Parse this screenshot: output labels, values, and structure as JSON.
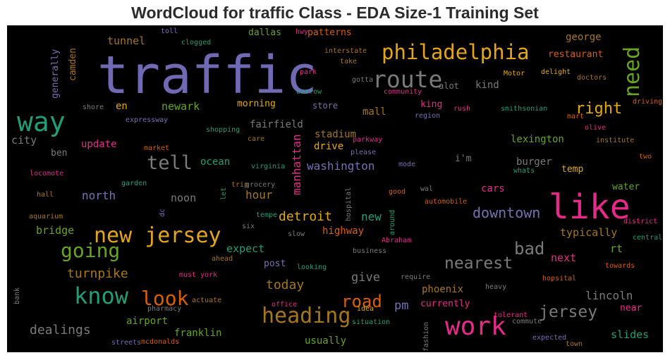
{
  "chart_data": {
    "type": "wordcloud",
    "title": "WordCloud for traffic Class - EDA Size-1 Training Set",
    "background": "#000000",
    "words": [
      {
        "text": "traffic",
        "color": "#6f6ab3"
      },
      {
        "text": "philadelphia",
        "color": "#e6a519"
      },
      {
        "text": "route",
        "color": "#7a7a7a"
      },
      {
        "text": "way",
        "color": "#1f9e77"
      },
      {
        "text": "like",
        "color": "#e7298a"
      },
      {
        "text": "work",
        "color": "#e7298a"
      },
      {
        "text": "new jersey",
        "color": "#e6a519"
      },
      {
        "text": "know",
        "color": "#1f9e77"
      },
      {
        "text": "heading",
        "color": "#a6761d"
      },
      {
        "text": "tell",
        "color": "#7a7a7a"
      },
      {
        "text": "going",
        "color": "#66a61e"
      },
      {
        "text": "look",
        "color": "#d95f02"
      },
      {
        "text": "need",
        "color": "#66a61e"
      },
      {
        "text": "right",
        "color": "#e6ab02"
      },
      {
        "text": "bad",
        "color": "#7a7a7a"
      },
      {
        "text": "nearest",
        "color": "#7a7a7a"
      },
      {
        "text": "jersey",
        "color": "#7a7a7a"
      },
      {
        "text": "road",
        "color": "#d95f02"
      },
      {
        "text": "downtown",
        "color": "#7570b3"
      },
      {
        "text": "washington",
        "color": "#7570b3"
      },
      {
        "text": "manhattan",
        "color": "#e7298a"
      },
      {
        "text": "detroit",
        "color": "#e6ab02"
      },
      {
        "text": "dealings",
        "color": "#7a7a7a"
      },
      {
        "text": "turnpike",
        "color": "#a6761d"
      },
      {
        "text": "today",
        "color": "#a6761d"
      },
      {
        "text": "lincoln",
        "color": "#7a7a7a"
      },
      {
        "text": "give",
        "color": "#7a7a7a"
      },
      {
        "text": "tunnel",
        "color": "#a6761d"
      },
      {
        "text": "city",
        "color": "#7a7a7a"
      },
      {
        "text": "lexington",
        "color": "#66a61e"
      },
      {
        "text": "stadium",
        "color": "#a6761d"
      },
      {
        "text": "hour",
        "color": "#a6761d"
      },
      {
        "text": "north",
        "color": "#7570b3"
      },
      {
        "text": "noon",
        "color": "#7a7a7a"
      },
      {
        "text": "expect",
        "color": "#1f9e77"
      },
      {
        "text": "new",
        "color": "#1f9e77"
      },
      {
        "text": "pm",
        "color": "#7570b3"
      },
      {
        "text": "phoenix",
        "color": "#a6761d"
      },
      {
        "text": "typically",
        "color": "#a6761d"
      },
      {
        "text": "rt",
        "color": "#66a61e"
      },
      {
        "text": "next",
        "color": "#e7298a"
      },
      {
        "text": "bridge",
        "color": "#66a61e"
      },
      {
        "text": "newark",
        "color": "#66a61e"
      },
      {
        "text": "fairfield",
        "color": "#7a7a7a"
      },
      {
        "text": "drive",
        "color": "#e6ab02"
      },
      {
        "text": "george",
        "color": "#a6761d"
      },
      {
        "text": "restaurant",
        "color": "#d95f02"
      },
      {
        "text": "kind",
        "color": "#7a7a7a"
      },
      {
        "text": "alot",
        "color": "#7a7a7a"
      },
      {
        "text": "king",
        "color": "#e7298a"
      },
      {
        "text": "mall",
        "color": "#a6761d"
      },
      {
        "text": "store",
        "color": "#7570b3"
      },
      {
        "text": "morning",
        "color": "#e6ab02"
      },
      {
        "text": "patterns",
        "color": "#d95f02"
      },
      {
        "text": "dallas",
        "color": "#66a61e"
      },
      {
        "text": "burger",
        "color": "#7a7a7a"
      },
      {
        "text": "temp",
        "color": "#e6ab02"
      },
      {
        "text": "water",
        "color": "#66a61e"
      },
      {
        "text": "cars",
        "color": "#e7298a"
      },
      {
        "text": "i'm",
        "color": "#7a7a7a"
      },
      {
        "text": "ocean",
        "color": "#1f9e77"
      },
      {
        "text": "update",
        "color": "#e7298a"
      },
      {
        "text": "en",
        "color": "#e6ab02"
      },
      {
        "text": "ben",
        "color": "#7a7a7a"
      },
      {
        "text": "highway",
        "color": "#d95f02"
      },
      {
        "text": "post",
        "color": "#7570b3"
      },
      {
        "text": "airport",
        "color": "#66a61e"
      },
      {
        "text": "franklin",
        "color": "#66a61e"
      },
      {
        "text": "usually",
        "color": "#66a61e"
      },
      {
        "text": "currently",
        "color": "#e7298a"
      },
      {
        "text": "near",
        "color": "#e7298a"
      },
      {
        "text": "slides",
        "color": "#1f9e77"
      },
      {
        "text": "generally",
        "color": "#7570b3"
      },
      {
        "text": "camden",
        "color": "#a6761d"
      },
      {
        "text": "toll",
        "color": "#7570b3"
      },
      {
        "text": "clogged",
        "color": "#1f9e77"
      },
      {
        "text": "hwy",
        "color": "#e7298a"
      },
      {
        "text": "interstate",
        "color": "#a6761d"
      },
      {
        "text": "take",
        "color": "#a6761d"
      },
      {
        "text": "park",
        "color": "#e7298a"
      },
      {
        "text": "gotta",
        "color": "#7a7a7a"
      },
      {
        "text": "burrow",
        "color": "#1f9e77"
      },
      {
        "text": "community",
        "color": "#e7298a"
      },
      {
        "text": "Motor",
        "color": "#e6ab02"
      },
      {
        "text": "delight",
        "color": "#e6ab02"
      },
      {
        "text": "doctors",
        "color": "#a6761d"
      },
      {
        "text": "driving",
        "color": "#d95f02"
      },
      {
        "text": "mart",
        "color": "#d95f02"
      },
      {
        "text": "olive",
        "color": "#e7298a"
      },
      {
        "text": "institute",
        "color": "#a6761d"
      },
      {
        "text": "two",
        "color": "#d95f02"
      },
      {
        "text": "shore",
        "color": "#7a7a7a"
      },
      {
        "text": "expressway",
        "color": "#7570b3"
      },
      {
        "text": "shopping",
        "color": "#1f9e77"
      },
      {
        "text": "care",
        "color": "#a6761d"
      },
      {
        "text": "region",
        "color": "#7570b3"
      },
      {
        "text": "rush",
        "color": "#e7298a"
      },
      {
        "text": "smithsonian",
        "color": "#1f9e77"
      },
      {
        "text": "parkway",
        "color": "#e7298a"
      },
      {
        "text": "please",
        "color": "#7570b3"
      },
      {
        "text": "virginia",
        "color": "#1f9e77"
      },
      {
        "text": "mode",
        "color": "#7570b3"
      },
      {
        "text": "whats",
        "color": "#1f9e77"
      },
      {
        "text": "market",
        "color": "#d95f02"
      },
      {
        "text": "locomote",
        "color": "#e7298a"
      },
      {
        "text": "trip",
        "color": "#a6761d"
      },
      {
        "text": "grocery",
        "color": "#7a7a7a"
      },
      {
        "text": "garden",
        "color": "#1f9e77"
      },
      {
        "text": "let",
        "color": "#1f9e77"
      },
      {
        "text": "hospital",
        "color": "#7a7a7a"
      },
      {
        "text": "good",
        "color": "#d95f02"
      },
      {
        "text": "wal",
        "color": "#7a7a7a"
      },
      {
        "text": "automobile",
        "color": "#d95f02"
      },
      {
        "text": "hall",
        "color": "#a6761d"
      },
      {
        "text": "aquarium",
        "color": "#a6761d"
      },
      {
        "text": "dc",
        "color": "#7570b3"
      },
      {
        "text": "tempe",
        "color": "#1f9e77"
      },
      {
        "text": "six",
        "color": "#7a7a7a"
      },
      {
        "text": "slow",
        "color": "#7a7a7a"
      },
      {
        "text": "around",
        "color": "#1f9e77"
      },
      {
        "text": "Abraham",
        "color": "#e7298a"
      },
      {
        "text": "business",
        "color": "#7a7a7a"
      },
      {
        "text": "district",
        "color": "#e7298a"
      },
      {
        "text": "central",
        "color": "#1f9e77"
      },
      {
        "text": "towards",
        "color": "#d95f02"
      },
      {
        "text": "must",
        "color": "#e7298a"
      },
      {
        "text": "york",
        "color": "#e7298a"
      },
      {
        "text": "ahead",
        "color": "#a6761d"
      },
      {
        "text": "looking",
        "color": "#1f9e77"
      },
      {
        "text": "require",
        "color": "#7a7a7a"
      },
      {
        "text": "hopsital",
        "color": "#d95f02"
      },
      {
        "text": "heavy",
        "color": "#7a7a7a"
      },
      {
        "text": "bank",
        "color": "#7a7a7a"
      },
      {
        "text": "pharmacy",
        "color": "#7a7a7a"
      },
      {
        "text": "actuate",
        "color": "#a6761d"
      },
      {
        "text": "office",
        "color": "#e7298a"
      },
      {
        "text": "idea",
        "color": "#e6ab02"
      },
      {
        "text": "situation",
        "color": "#1f9e77"
      },
      {
        "text": "tolerant",
        "color": "#e7298a"
      },
      {
        "text": "commute",
        "color": "#7a7a7a"
      },
      {
        "text": "expected",
        "color": "#7570b3"
      },
      {
        "text": "fashion",
        "color": "#7a7a7a"
      },
      {
        "text": "town",
        "color": "#a6761d"
      },
      {
        "text": "streets",
        "color": "#7570b3"
      },
      {
        "text": "mcdonalds",
        "color": "#d95f02"
      }
    ]
  }
}
